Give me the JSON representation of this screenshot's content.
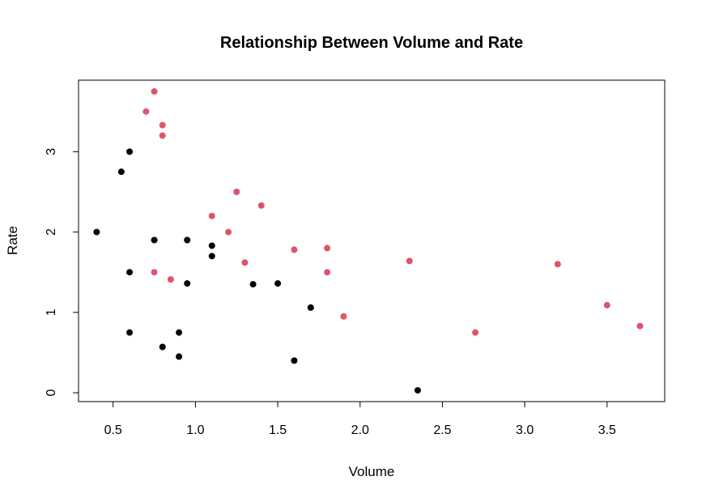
{
  "chart_data": {
    "type": "scatter",
    "title": "Relationship Between Volume and Rate",
    "xlabel": "Volume",
    "ylabel": "Rate",
    "xlim": [
      0.29,
      3.85
    ],
    "ylim": [
      -0.11,
      3.89
    ],
    "x_ticks": [
      0.5,
      1.0,
      1.5,
      2.0,
      2.5,
      3.0,
      3.5
    ],
    "x_tick_labels": [
      "0.5",
      "1.0",
      "1.5",
      "2.0",
      "2.5",
      "3.0",
      "3.5"
    ],
    "y_ticks": [
      0,
      1,
      2,
      3
    ],
    "y_tick_labels": [
      "0",
      "1",
      "2",
      "3"
    ],
    "grid": false,
    "legend": "none",
    "series": [
      {
        "color": "#000000",
        "points": [
          {
            "x": 0.4,
            "y": 2.0
          },
          {
            "x": 0.55,
            "y": 2.75
          },
          {
            "x": 0.6,
            "y": 3.0
          },
          {
            "x": 0.6,
            "y": 1.5
          },
          {
            "x": 0.6,
            "y": 0.75
          },
          {
            "x": 0.75,
            "y": 1.9
          },
          {
            "x": 0.8,
            "y": 0.57
          },
          {
            "x": 0.9,
            "y": 0.75
          },
          {
            "x": 0.9,
            "y": 0.45
          },
          {
            "x": 0.95,
            "y": 1.9
          },
          {
            "x": 0.95,
            "y": 1.36
          },
          {
            "x": 1.1,
            "y": 1.83
          },
          {
            "x": 1.1,
            "y": 1.7
          },
          {
            "x": 1.35,
            "y": 1.35
          },
          {
            "x": 1.5,
            "y": 1.36
          },
          {
            "x": 1.6,
            "y": 0.4
          },
          {
            "x": 1.7,
            "y": 1.06
          },
          {
            "x": 2.35,
            "y": 0.03
          }
        ]
      },
      {
        "color": "#DF536B",
        "points": [
          {
            "x": 0.7,
            "y": 3.5
          },
          {
            "x": 0.75,
            "y": 3.75
          },
          {
            "x": 0.75,
            "y": 1.5
          },
          {
            "x": 0.8,
            "y": 3.33
          },
          {
            "x": 0.8,
            "y": 3.2
          },
          {
            "x": 0.85,
            "y": 1.41
          },
          {
            "x": 1.1,
            "y": 2.2
          },
          {
            "x": 1.2,
            "y": 2.0
          },
          {
            "x": 1.25,
            "y": 2.5
          },
          {
            "x": 1.3,
            "y": 1.62
          },
          {
            "x": 1.4,
            "y": 2.33
          },
          {
            "x": 1.6,
            "y": 1.78
          },
          {
            "x": 1.8,
            "y": 1.8
          },
          {
            "x": 1.8,
            "y": 1.5
          },
          {
            "x": 1.9,
            "y": 0.95
          },
          {
            "x": 2.3,
            "y": 1.64
          },
          {
            "x": 2.7,
            "y": 0.75
          },
          {
            "x": 3.2,
            "y": 1.6
          },
          {
            "x": 3.5,
            "y": 1.09
          },
          {
            "x": 3.7,
            "y": 0.83
          }
        ]
      }
    ]
  }
}
